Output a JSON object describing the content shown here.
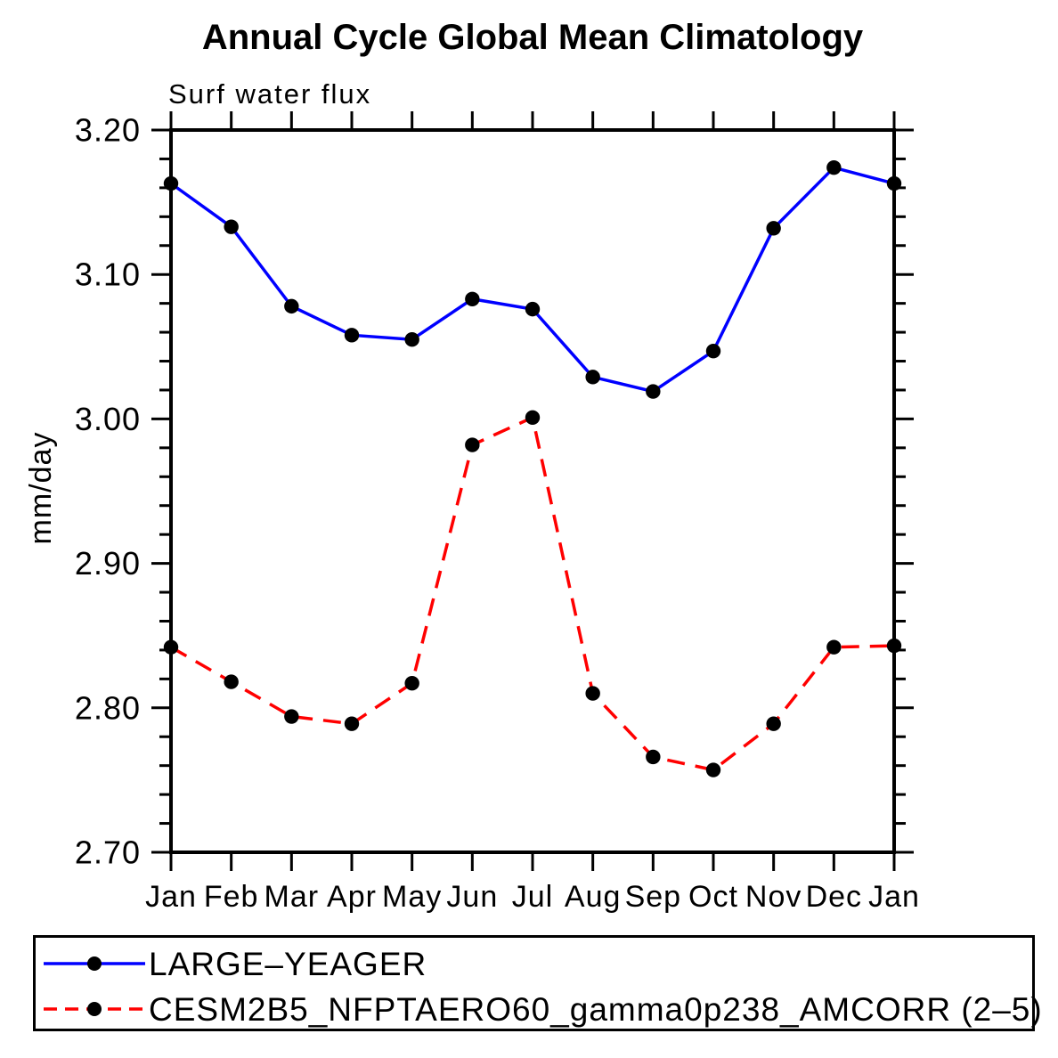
{
  "page": {
    "background": "#ffffff",
    "text_color": "#000000"
  },
  "chart_data": {
    "type": "line",
    "title": "Annual Cycle Global Mean Climatology",
    "subtitle": "Surf water flux",
    "ylabel": "mm/day",
    "xlabel": "",
    "x_categories": [
      "Jan",
      "Feb",
      "Mar",
      "Apr",
      "May",
      "Jun",
      "Jul",
      "Aug",
      "Sep",
      "Oct",
      "Nov",
      "Dec",
      "Jan"
    ],
    "ylim": [
      2.7,
      3.2
    ],
    "ytick_major_step": 0.1,
    "ytick_minor_step": 0.02,
    "ytick_labels": [
      "3.20",
      "3.10",
      "3.00",
      "2.90",
      "2.80",
      "2.70"
    ],
    "grid": false,
    "legend_position": "bottom-left-box",
    "axis_color": "#000000",
    "marker_color": "#000000",
    "series": [
      {
        "name": "LARGE–YEAGER",
        "color": "#0000ff",
        "line_style": "solid",
        "marker": "circle",
        "values": [
          3.163,
          3.133,
          3.078,
          3.058,
          3.055,
          3.083,
          3.076,
          3.029,
          3.019,
          3.047,
          3.132,
          3.174,
          3.163
        ]
      },
      {
        "name": "CESM2B5_NFPTAERO60_gamma0p238_AMCORR (2–5)",
        "color": "#ff0000",
        "line_style": "dashed",
        "marker": "circle",
        "values": [
          2.842,
          2.818,
          2.794,
          2.789,
          2.817,
          2.982,
          3.001,
          2.81,
          2.766,
          2.757,
          2.789,
          2.842,
          2.843
        ]
      }
    ]
  }
}
